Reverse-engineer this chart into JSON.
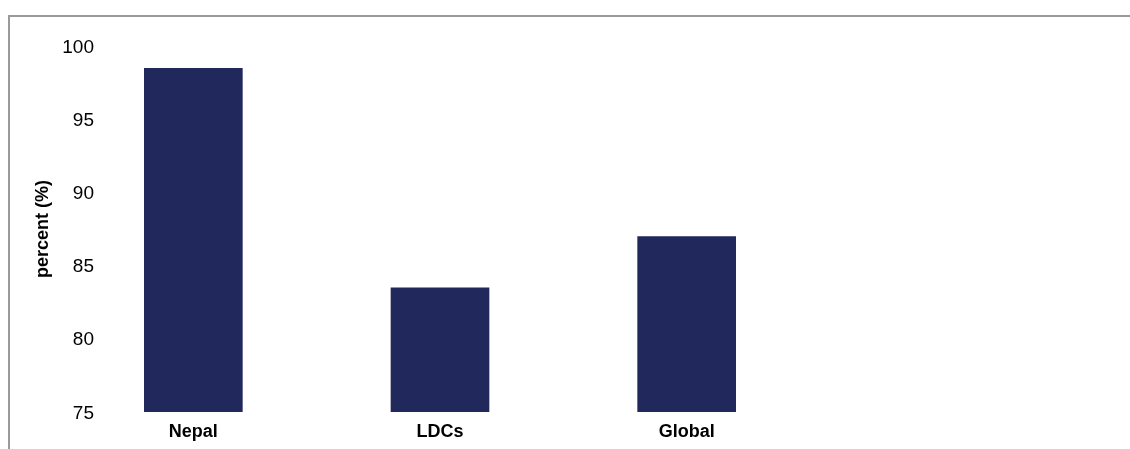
{
  "chart_data": {
    "type": "bar",
    "ylabel": "percent (%)",
    "categories": [
      "Nepal",
      "LDCs",
      "Global"
    ],
    "values": [
      98.5,
      83.5,
      87.0
    ],
    "color": "#21295c",
    "ylim": [
      75,
      100
    ],
    "yticks": [
      75,
      80,
      85,
      90,
      95,
      100
    ]
  }
}
